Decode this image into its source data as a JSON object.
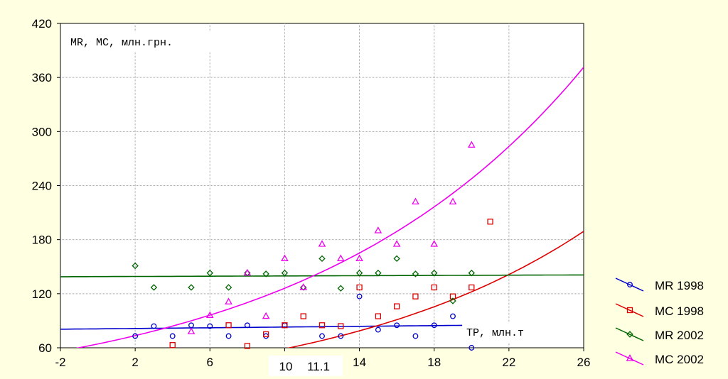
{
  "chart_data": {
    "type": "scatter",
    "annotations": {
      "y_title": "MR, MC, млн.грн.",
      "x_title": "TP, млн.т",
      "x_marks": [
        "10",
        "11.1"
      ]
    },
    "x_axis": {
      "min": -2,
      "max": 26,
      "ticks": [
        -2,
        2,
        6,
        10,
        14,
        18,
        22,
        26
      ],
      "tick_labels": [
        "-2",
        "2",
        "6",
        "10",
        "14",
        "18",
        "22",
        "26"
      ]
    },
    "y_axis": {
      "min": 60,
      "max": 420,
      "ticks": [
        60,
        120,
        180,
        240,
        300,
        360,
        420
      ],
      "tick_labels": [
        "60",
        "120",
        "180",
        "240",
        "300",
        "360",
        "420"
      ]
    },
    "grid": true,
    "legend_position": "right",
    "series": [
      {
        "name": "MR 1998",
        "color": "#0000cc",
        "marker": "circle",
        "points": [
          [
            2,
            73
          ],
          [
            3,
            84
          ],
          [
            4,
            73
          ],
          [
            5,
            85
          ],
          [
            6,
            84
          ],
          [
            7,
            73
          ],
          [
            8,
            85
          ],
          [
            9,
            73
          ],
          [
            10,
            85
          ],
          [
            12,
            73
          ],
          [
            13,
            73
          ],
          [
            14,
            117
          ],
          [
            15,
            80
          ],
          [
            16,
            85
          ],
          [
            17,
            73
          ],
          [
            18,
            85
          ],
          [
            19,
            95
          ],
          [
            20,
            60
          ]
        ],
        "fit": {
          "kind": "linear",
          "a": 81.0,
          "b": 0.2,
          "x_from": -2,
          "x_to": 19.5
        }
      },
      {
        "name": "MC 1998",
        "color": "#dd0000",
        "marker": "square",
        "points": [
          [
            4,
            63
          ],
          [
            7,
            85
          ],
          [
            8,
            62
          ],
          [
            9,
            75
          ],
          [
            10,
            85
          ],
          [
            11,
            95
          ],
          [
            12,
            85
          ],
          [
            13,
            84
          ],
          [
            14,
            127
          ],
          [
            15,
            95
          ],
          [
            16,
            106
          ],
          [
            17,
            117
          ],
          [
            18,
            127
          ],
          [
            19,
            117
          ],
          [
            20,
            127
          ],
          [
            21,
            200
          ]
        ],
        "fit": {
          "kind": "exp",
          "a": 28.36,
          "b": 0.073,
          "x_from": 4,
          "x_to": 26
        }
      },
      {
        "name": "MR 2002",
        "color": "#006600",
        "marker": "diamond",
        "points": [
          [
            2,
            151
          ],
          [
            3,
            127
          ],
          [
            5,
            127
          ],
          [
            6,
            143
          ],
          [
            7,
            127
          ],
          [
            8,
            143
          ],
          [
            9,
            142
          ],
          [
            10,
            143
          ],
          [
            11,
            127
          ],
          [
            12,
            159
          ],
          [
            13,
            126
          ],
          [
            14,
            143
          ],
          [
            15,
            143
          ],
          [
            16,
            159
          ],
          [
            17,
            142
          ],
          [
            18,
            143
          ],
          [
            19,
            112
          ],
          [
            20,
            143
          ]
        ],
        "fit": {
          "kind": "linear",
          "a": 139,
          "b": 0.0714,
          "x_from": -2,
          "x_to": 26
        }
      },
      {
        "name": "MC 2002",
        "color": "#ee00ee",
        "marker": "triangle",
        "points": [
          [
            5,
            78
          ],
          [
            6,
            96
          ],
          [
            7,
            111
          ],
          [
            8,
            143
          ],
          [
            9,
            95
          ],
          [
            10,
            159
          ],
          [
            11,
            127
          ],
          [
            12,
            175
          ],
          [
            13,
            159
          ],
          [
            14,
            159
          ],
          [
            15,
            190
          ],
          [
            16,
            175
          ],
          [
            17,
            222
          ],
          [
            18,
            175
          ],
          [
            19,
            222
          ],
          [
            20,
            285
          ]
        ],
        "fit": {
          "kind": "exp",
          "a": 64.2,
          "b": 0.0675,
          "x_from": -2,
          "x_to": 26
        }
      }
    ]
  }
}
